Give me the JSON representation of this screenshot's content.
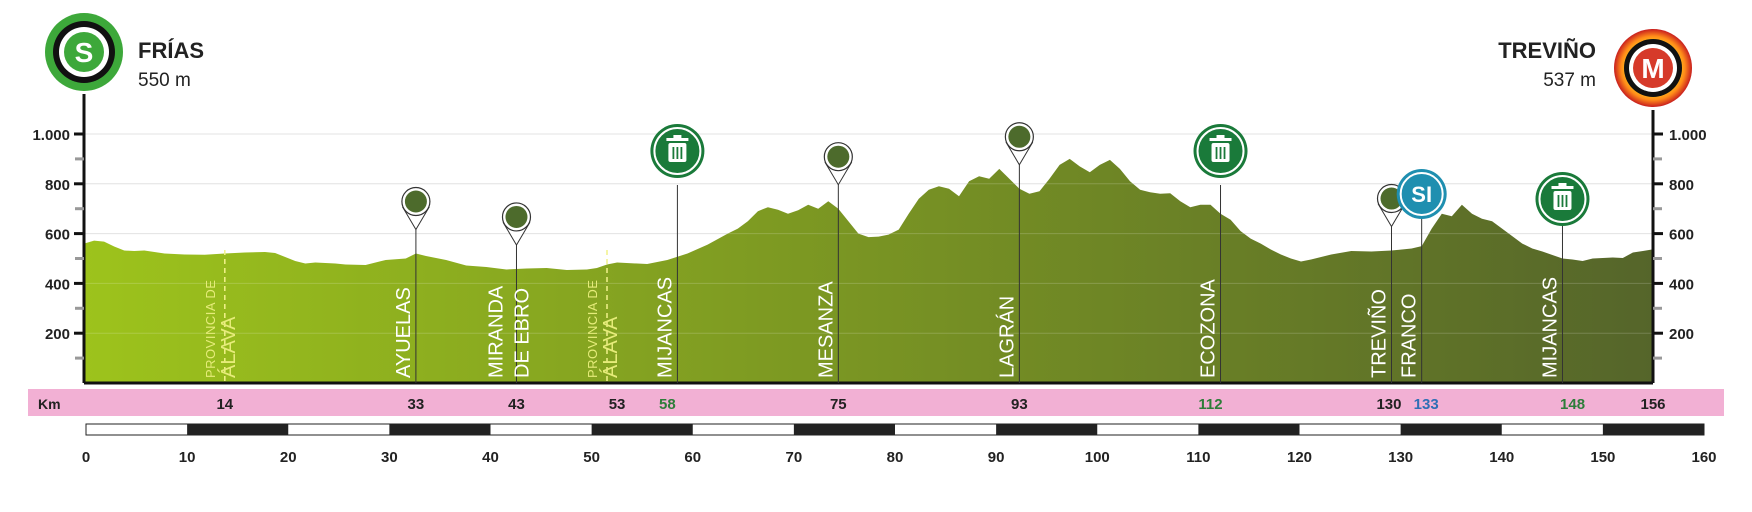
{
  "colors": {
    "profile_start": "#9dc31c",
    "profile_end": "#55652a",
    "km_band": "#f2b0d4",
    "marker_green": "#1a7a3a",
    "marker_blue": "#1f8fb0",
    "start_ring": "#3da83a",
    "finish_ring": "#d63a2a",
    "accent_green_km": "#2e7d3a",
    "accent_blue_km": "#2f6fb5"
  },
  "start": {
    "icon_letter": "S",
    "name": "FRÍAS",
    "altitude": "550 m"
  },
  "finish": {
    "icon_letter": "M",
    "name": "TREVIÑO",
    "altitude": "537 m"
  },
  "km_band": {
    "label": "Km"
  },
  "chart_data": {
    "type": "area",
    "xlim": [
      0,
      160
    ],
    "ylim": [
      0,
      1100
    ],
    "ylabel": "",
    "xlabel": "",
    "y_ticks": [
      "1.000",
      "800",
      "600",
      "400",
      "200"
    ],
    "y_tick_values": [
      1000,
      800,
      600,
      400,
      200
    ],
    "x_ticks": [
      "0",
      "10",
      "20",
      "30",
      "40",
      "50",
      "60",
      "70",
      "80",
      "90",
      "100",
      "110",
      "120",
      "130",
      "140",
      "150",
      "160"
    ],
    "x_tick_values": [
      0,
      10,
      20,
      30,
      40,
      50,
      60,
      70,
      80,
      90,
      100,
      110,
      120,
      130,
      140,
      150,
      160
    ],
    "route_km_max": 156,
    "profile": [
      [
        0,
        560
      ],
      [
        1,
        572
      ],
      [
        2,
        568
      ],
      [
        3,
        548
      ],
      [
        4,
        532
      ],
      [
        5,
        530
      ],
      [
        6,
        532
      ],
      [
        7,
        526
      ],
      [
        8,
        520
      ],
      [
        10,
        516
      ],
      [
        12,
        515
      ],
      [
        14,
        520
      ],
      [
        16,
        524
      ],
      [
        18,
        526
      ],
      [
        19,
        522
      ],
      [
        20,
        506
      ],
      [
        21,
        490
      ],
      [
        22,
        480
      ],
      [
        23,
        484
      ],
      [
        25,
        480
      ],
      [
        26,
        476
      ],
      [
        28,
        474
      ],
      [
        30,
        494
      ],
      [
        32,
        500
      ],
      [
        33,
        520
      ],
      [
        34,
        510
      ],
      [
        36,
        494
      ],
      [
        38,
        472
      ],
      [
        40,
        466
      ],
      [
        42,
        456
      ],
      [
        44,
        460
      ],
      [
        46,
        462
      ],
      [
        48,
        454
      ],
      [
        50,
        456
      ],
      [
        51,
        462
      ],
      [
        52,
        476
      ],
      [
        53,
        484
      ],
      [
        55,
        480
      ],
      [
        56,
        478
      ],
      [
        58,
        494
      ],
      [
        60,
        520
      ],
      [
        62,
        556
      ],
      [
        64,
        600
      ],
      [
        65,
        620
      ],
      [
        66,
        650
      ],
      [
        67,
        690
      ],
      [
        68,
        706
      ],
      [
        69,
        696
      ],
      [
        70,
        680
      ],
      [
        71,
        694
      ],
      [
        72,
        716
      ],
      [
        73,
        700
      ],
      [
        74,
        730
      ],
      [
        75,
        700
      ],
      [
        76,
        650
      ],
      [
        77,
        600
      ],
      [
        78,
        586
      ],
      [
        79,
        588
      ],
      [
        80,
        596
      ],
      [
        81,
        616
      ],
      [
        82,
        680
      ],
      [
        83,
        740
      ],
      [
        84,
        776
      ],
      [
        85,
        790
      ],
      [
        86,
        780
      ],
      [
        87,
        750
      ],
      [
        88,
        810
      ],
      [
        89,
        830
      ],
      [
        90,
        820
      ],
      [
        91,
        860
      ],
      [
        92,
        820
      ],
      [
        93,
        780
      ],
      [
        94,
        760
      ],
      [
        95,
        770
      ],
      [
        96,
        820
      ],
      [
        97,
        876
      ],
      [
        98,
        900
      ],
      [
        99,
        870
      ],
      [
        100,
        846
      ],
      [
        101,
        876
      ],
      [
        102,
        896
      ],
      [
        103,
        860
      ],
      [
        104,
        810
      ],
      [
        105,
        776
      ],
      [
        106,
        766
      ],
      [
        107,
        760
      ],
      [
        108,
        762
      ],
      [
        109,
        730
      ],
      [
        110,
        706
      ],
      [
        111,
        716
      ],
      [
        112,
        716
      ],
      [
        113,
        680
      ],
      [
        114,
        656
      ],
      [
        115,
        610
      ],
      [
        116,
        580
      ],
      [
        117,
        560
      ],
      [
        118,
        536
      ],
      [
        119,
        516
      ],
      [
        120,
        500
      ],
      [
        121,
        488
      ],
      [
        122,
        496
      ],
      [
        124,
        516
      ],
      [
        126,
        530
      ],
      [
        128,
        528
      ],
      [
        130,
        532
      ],
      [
        132,
        540
      ],
      [
        133,
        550
      ],
      [
        134,
        620
      ],
      [
        135,
        680
      ],
      [
        136,
        670
      ],
      [
        137,
        716
      ],
      [
        138,
        680
      ],
      [
        139,
        660
      ],
      [
        140,
        650
      ],
      [
        141,
        620
      ],
      [
        142,
        590
      ],
      [
        143,
        560
      ],
      [
        144,
        540
      ],
      [
        145,
        528
      ],
      [
        146,
        514
      ],
      [
        147,
        500
      ],
      [
        148,
        496
      ],
      [
        149,
        490
      ],
      [
        150,
        500
      ],
      [
        152,
        504
      ],
      [
        153,
        502
      ],
      [
        154,
        524
      ],
      [
        155,
        530
      ],
      [
        156,
        537
      ]
    ]
  },
  "km_points": [
    {
      "km": 14,
      "label": "14",
      "color": "dark"
    },
    {
      "km": 33,
      "label": "33",
      "color": "dark"
    },
    {
      "km": 43,
      "label": "43",
      "color": "dark"
    },
    {
      "km": 53,
      "label": "53",
      "color": "dark"
    },
    {
      "km": 58,
      "label": "58",
      "color": "green"
    },
    {
      "km": 75,
      "label": "75",
      "color": "dark"
    },
    {
      "km": 93,
      "label": "93",
      "color": "dark"
    },
    {
      "km": 112,
      "label": "112",
      "color": "green"
    },
    {
      "km": 130,
      "label": "130",
      "color": "dark"
    },
    {
      "km": 133,
      "label": "133",
      "color": "blue"
    },
    {
      "km": 148,
      "label": "148",
      "color": "green"
    },
    {
      "km": 156,
      "label": "156",
      "color": "dark"
    }
  ],
  "province_labels": [
    {
      "km": 14,
      "line1": "PROVINCIA DE",
      "line2": "ÁLAVA"
    },
    {
      "km": 52,
      "line1": "PROVINCIA DE",
      "line2": "ÁLAVA"
    }
  ],
  "towns": [
    {
      "km": 33,
      "lines": [
        "AYUELAS"
      ],
      "marker": "pin"
    },
    {
      "km": 43,
      "lines": [
        "MIRANDA",
        "DE EBRO"
      ],
      "marker": "pin"
    },
    {
      "km": 59,
      "lines": [
        "MIJANCAS"
      ],
      "marker": "trash"
    },
    {
      "km": 75,
      "lines": [
        "MESANZA"
      ],
      "marker": "pin"
    },
    {
      "km": 93,
      "lines": [
        "LAGRÁN"
      ],
      "marker": "pin"
    },
    {
      "km": 113,
      "lines": [
        "ECOZONA"
      ],
      "marker": "trash"
    },
    {
      "km": 130,
      "lines": [
        "TREVIÑO"
      ],
      "marker": "pin"
    },
    {
      "km": 133,
      "lines": [
        "FRANCO"
      ],
      "marker": "sprint",
      "marker_text": "SI"
    },
    {
      "km": 147,
      "lines": [
        "MIJANCAS"
      ],
      "marker": "trash"
    }
  ]
}
